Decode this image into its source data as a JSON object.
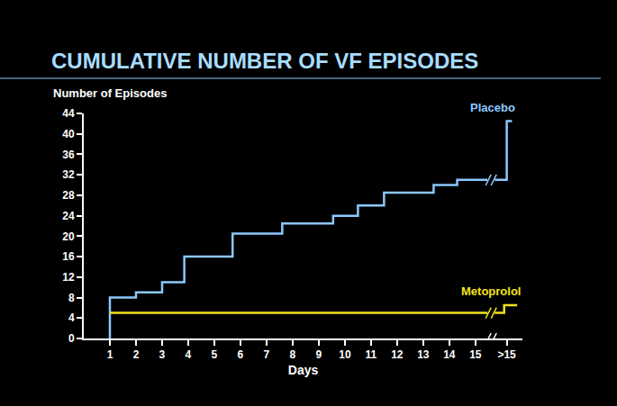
{
  "chart_data": {
    "type": "step",
    "title": "CUMULATIVE NUMBER OF VF EPISODES",
    "xlabel": "Days",
    "ylabel": "Number of Episodes",
    "series": [
      {
        "name": "Placebo",
        "color": "#8cc8ff",
        "x": [
          1,
          1,
          2,
          3,
          3.85,
          5.7,
          7.6,
          9.55,
          10.5,
          11.5,
          13.4,
          14.3,
          16.2,
          16.4
        ],
        "values": [
          0,
          8,
          9,
          11,
          16,
          20.5,
          22.5,
          24,
          26,
          28.5,
          30,
          31,
          42.5,
          42.5
        ]
      },
      {
        "name": "Metoprolol",
        "color": "#f2e21c",
        "x": [
          1,
          16.1,
          16.6
        ],
        "values": [
          5,
          6.5,
          6.5
        ]
      }
    ],
    "xlim": [
      0,
      16.8
    ],
    "xticks": [
      1,
      2,
      3,
      4,
      5,
      6,
      7,
      8,
      9,
      10,
      11,
      12,
      13,
      14,
      15,
      {
        "value": 16.2,
        "label": ">15"
      }
    ],
    "ylim": [
      0,
      44
    ],
    "yticks": [
      0,
      4,
      8,
      12,
      16,
      20,
      24,
      28,
      32,
      36,
      40,
      44
    ],
    "grid": false
  }
}
